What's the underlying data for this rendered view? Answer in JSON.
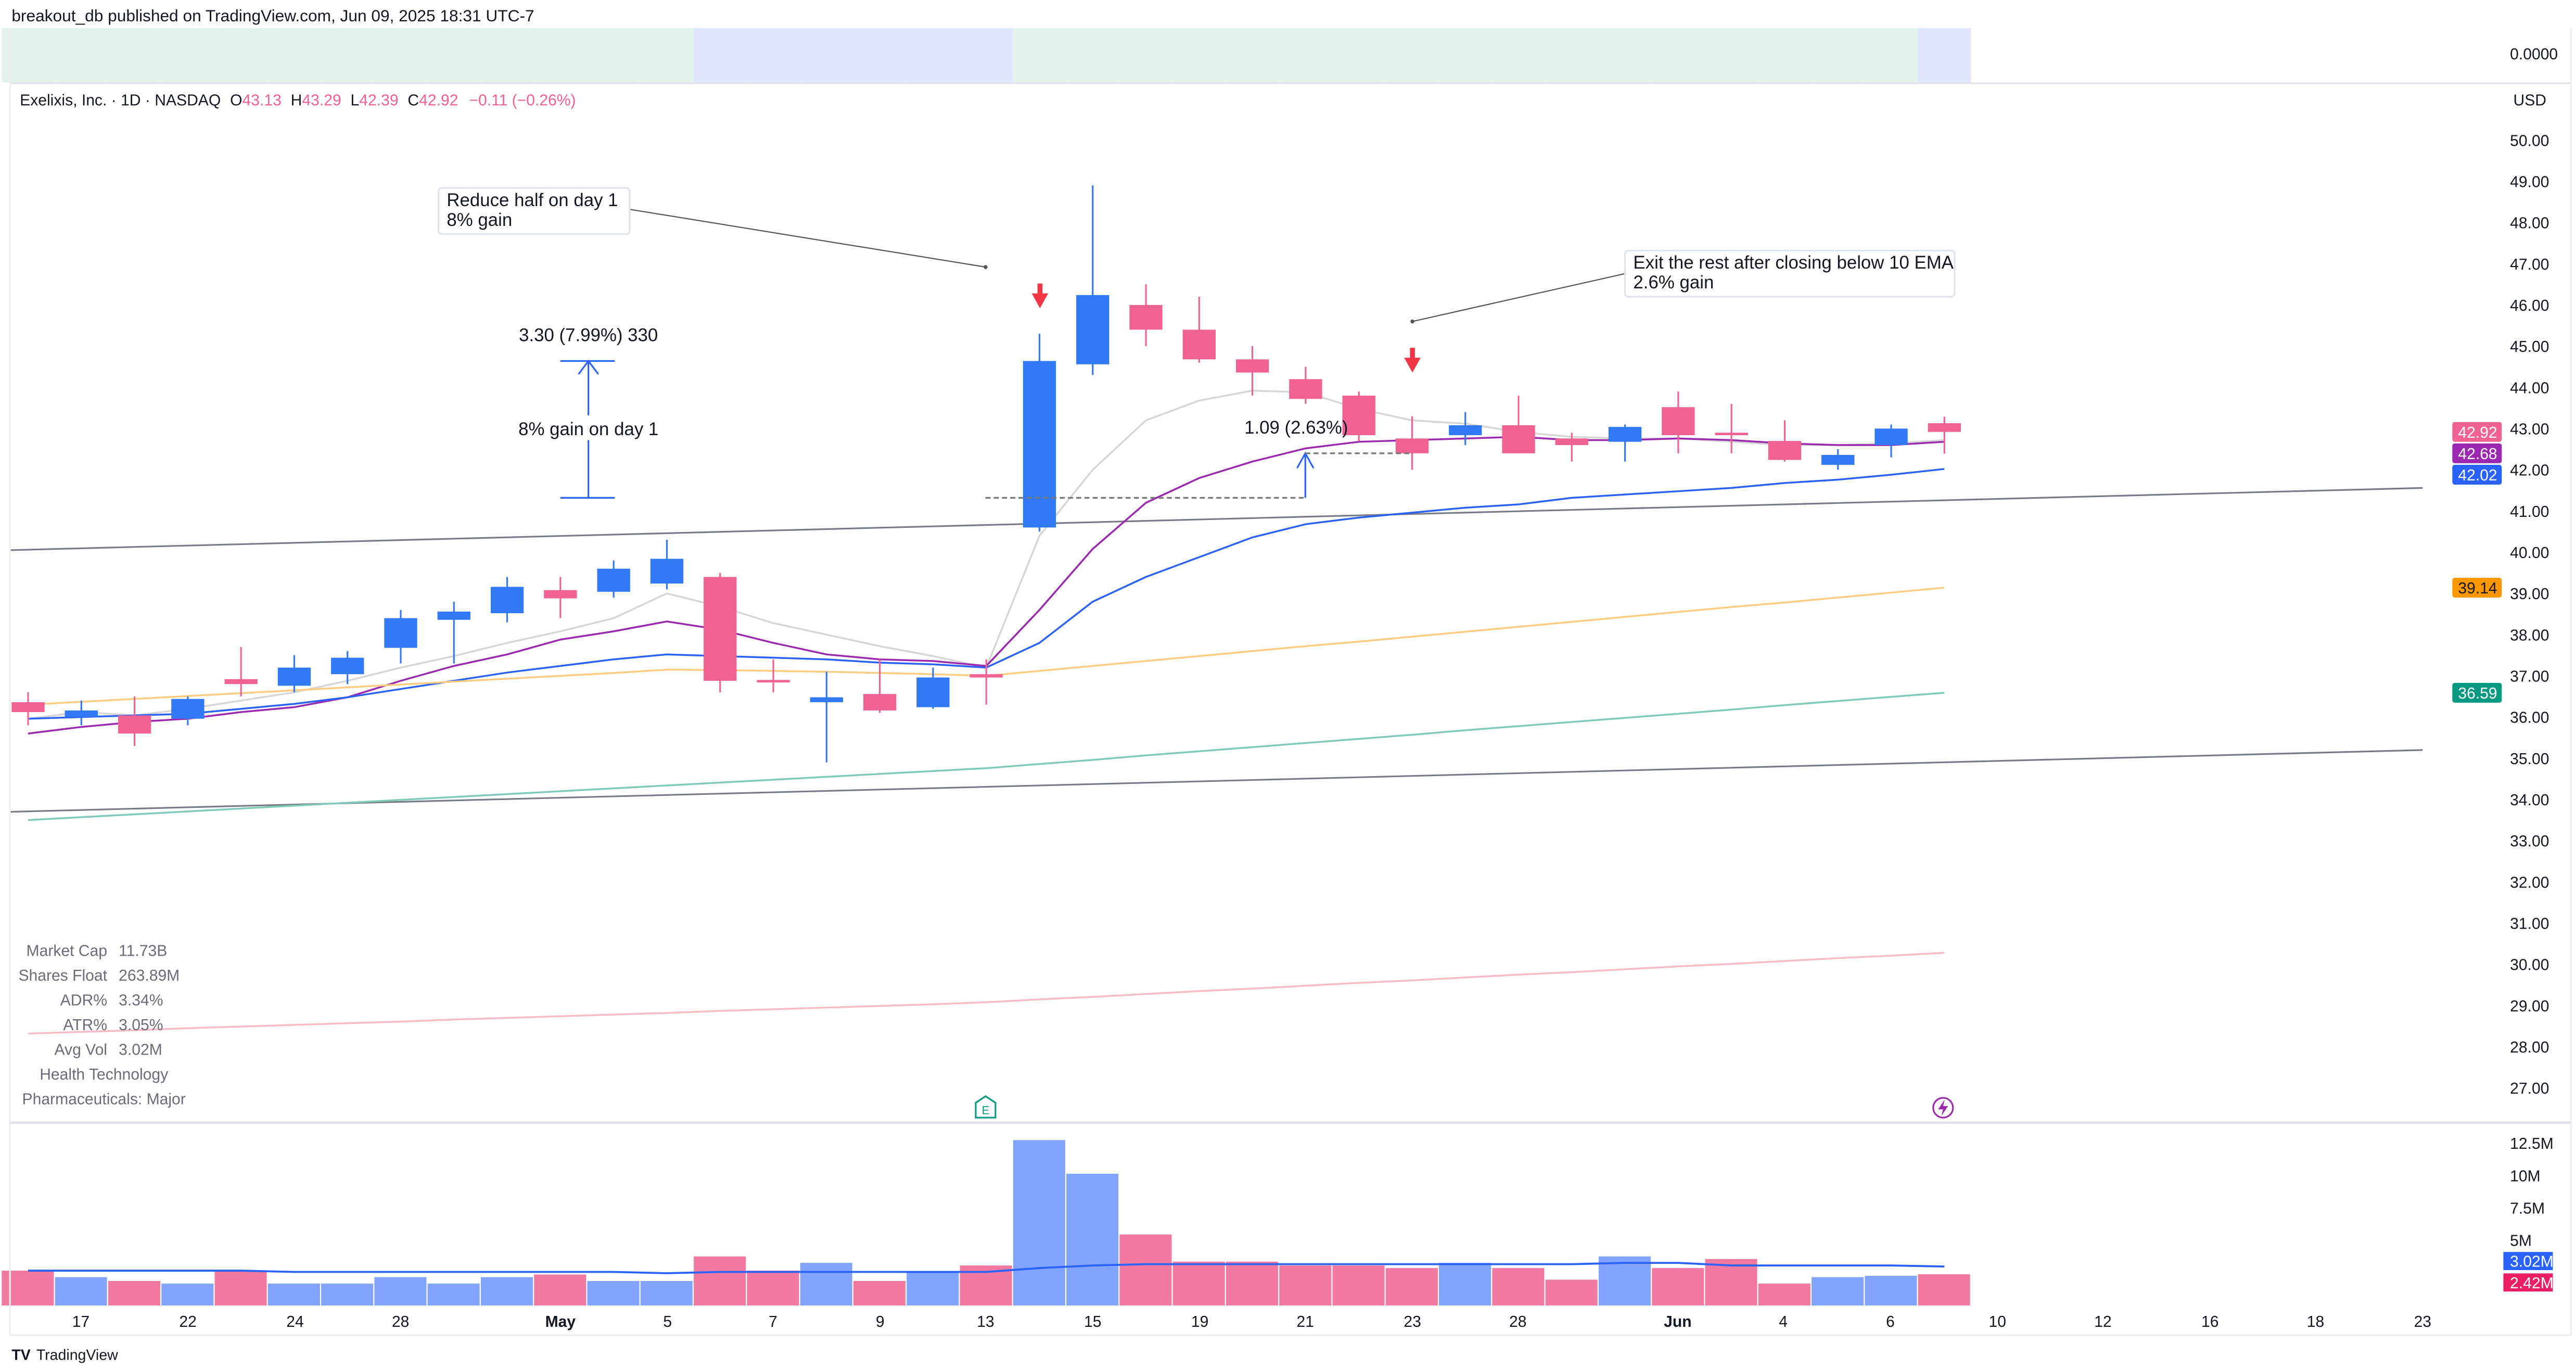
{
  "header": {
    "publisher": "breakout_db published on TradingView.com, Jun 09, 2025 18:31 UTC-7"
  },
  "legend": {
    "symbol": "Exelixis, Inc. · 1D · NASDAQ",
    "o_label": "O",
    "o": "43.13",
    "h_label": "H",
    "h": "43.29",
    "l_label": "L",
    "l": "42.39",
    "c_label": "C",
    "c": "42.92",
    "change": "−0.11 (−0.26%)"
  },
  "top_indicator": {
    "value_label": "0.0000",
    "regime_per_bar": [
      "green",
      "green",
      "green",
      "green",
      "green",
      "green",
      "green",
      "green",
      "green",
      "green",
      "green",
      "green",
      "green",
      "blue",
      "blue",
      "blue",
      "blue",
      "blue",
      "blue",
      "green",
      "green",
      "green",
      "green",
      "green",
      "green",
      "green",
      "green",
      "green",
      "green",
      "green",
      "green",
      "green",
      "green",
      "green",
      "green",
      "green",
      "blue"
    ],
    "colors": {
      "green": "#e4f3ec",
      "blue": "#e0e6fb"
    }
  },
  "currency": "USD",
  "colors": {
    "up": "#3179f5",
    "down": "#f06292",
    "vol_up": "#82a4ff",
    "vol_down": "#f279a0",
    "ema_gray": "#d6d6d6",
    "ema_purple": "#9c27b0",
    "ma_blue": "#2962ff",
    "ma_orange": "#ffcc80",
    "ma_teal": "#7fcbb8",
    "ma_pink": "#f8bbc7",
    "arrow_red": "#f23645",
    "earnings": "#089981",
    "dividend": "#9c27b0"
  },
  "stats": [
    {
      "label": "Market Cap",
      "value": "11.73B"
    },
    {
      "label": "Shares Float",
      "value": "263.89M"
    },
    {
      "label": "ADR%",
      "value": "3.34%"
    },
    {
      "label": "ATR%",
      "value": "3.05%"
    },
    {
      "label": "Avg Vol",
      "value": "3.02M"
    }
  ],
  "sector": "Health Technology",
  "industry": "Pharmaceuticals: Major",
  "annotations": {
    "note1_line1": "Reduce half on day 1",
    "note1_line2": "8% gain",
    "measure1": "3.30 (7.99%) 330",
    "measure1_caption": "8% gain on day 1",
    "measure2": "1.09 (2.63%)",
    "note2_line1": "Exit the rest after closing below 10 EMA",
    "note2_line2": "2.6% gain",
    "earnings_marker": "E",
    "entry_price": 41.3,
    "exit_price": 42.4
  },
  "chart_data": {
    "type": "candlestick",
    "dates": [
      "Apr 16",
      "Apr 17",
      "Apr 21",
      "Apr 22",
      "Apr 23",
      "Apr 24",
      "Apr 25",
      "Apr 28",
      "Apr 29",
      "Apr 30",
      "May 1",
      "May 2",
      "May 5",
      "May 6",
      "May 7",
      "May 8",
      "May 9",
      "May 12",
      "May 13",
      "May 14",
      "May 15",
      "May 16",
      "May 19",
      "May 20",
      "May 21",
      "May 22",
      "May 23",
      "May 27",
      "May 28",
      "May 29",
      "May 30",
      "Jun 2",
      "Jun 3",
      "Jun 4",
      "Jun 5",
      "Jun 6",
      "Jun 9"
    ],
    "open": [
      36.36,
      36.0,
      36.04,
      35.96,
      36.92,
      36.76,
      37.04,
      37.68,
      38.36,
      38.52,
      39.08,
      39.04,
      39.24,
      39.4,
      36.9,
      36.36,
      36.56,
      36.24,
      37.04,
      40.6,
      44.56,
      46.0,
      45.4,
      44.68,
      44.2,
      43.8,
      42.76,
      42.84,
      43.08,
      42.76,
      42.68,
      43.52,
      42.9,
      42.7,
      42.12,
      42.6,
      43.13
    ],
    "high": [
      36.6,
      36.4,
      36.5,
      36.5,
      37.7,
      37.5,
      37.6,
      38.6,
      38.8,
      39.4,
      39.4,
      39.8,
      40.3,
      39.5,
      37.4,
      37.1,
      37.4,
      37.2,
      37.4,
      45.3,
      48.9,
      46.5,
      46.2,
      45.0,
      44.5,
      43.9,
      43.3,
      43.4,
      43.8,
      42.9,
      43.1,
      43.9,
      43.6,
      43.2,
      42.5,
      43.1,
      43.29
    ],
    "low": [
      35.8,
      35.8,
      35.3,
      35.8,
      36.5,
      36.6,
      36.8,
      37.3,
      37.3,
      38.3,
      38.4,
      38.9,
      39.1,
      36.6,
      36.6,
      34.9,
      36.1,
      36.2,
      36.3,
      40.5,
      44.3,
      45.0,
      44.6,
      43.8,
      43.6,
      42.7,
      42.0,
      42.6,
      42.4,
      42.2,
      42.2,
      42.4,
      42.4,
      42.2,
      42.0,
      42.3,
      42.39
    ],
    "close": [
      36.12,
      36.16,
      35.6,
      36.44,
      36.8,
      37.2,
      37.44,
      38.4,
      38.56,
      39.16,
      38.88,
      39.6,
      39.84,
      36.88,
      36.84,
      36.48,
      36.16,
      36.96,
      36.96,
      44.64,
      46.24,
      45.4,
      44.68,
      44.36,
      43.72,
      42.84,
      42.4,
      43.08,
      42.4,
      42.6,
      43.04,
      42.84,
      42.86,
      42.24,
      42.36,
      43.0,
      42.92
    ],
    "volume_m": [
      2.7,
      2.2,
      1.9,
      1.7,
      2.7,
      1.7,
      1.7,
      2.2,
      1.7,
      2.2,
      2.4,
      1.9,
      1.9,
      3.8,
      2.7,
      3.3,
      1.9,
      2.6,
      3.1,
      12.8,
      10.2,
      5.5,
      3.4,
      3.4,
      3.1,
      3.1,
      2.9,
      3.3,
      2.9,
      2.0,
      3.8,
      2.9,
      3.6,
      1.7,
      2.2,
      2.3,
      2.42
    ],
    "volume_ma_m": [
      2.7,
      2.7,
      2.7,
      2.7,
      2.7,
      2.6,
      2.6,
      2.6,
      2.6,
      2.6,
      2.6,
      2.6,
      2.5,
      2.6,
      2.6,
      2.6,
      2.6,
      2.6,
      2.6,
      2.9,
      3.1,
      3.2,
      3.2,
      3.2,
      3.2,
      3.2,
      3.2,
      3.2,
      3.2,
      3.2,
      3.3,
      3.3,
      3.1,
      3.1,
      3.1,
      3.1,
      3.02
    ],
    "overlays": [
      {
        "color_key": "ema_gray",
        "values": [
          35.96,
          36.12,
          36.04,
          36.2,
          36.4,
          36.6,
          36.88,
          37.2,
          37.48,
          37.8,
          38.08,
          38.4,
          39.0,
          38.68,
          38.28,
          38.0,
          37.72,
          37.48,
          37.2,
          40.4,
          42.0,
          43.2,
          43.68,
          43.92,
          43.88,
          43.48,
          43.2,
          43.12,
          42.92,
          42.8,
          42.76,
          42.76,
          42.68,
          42.6,
          42.6,
          42.64,
          42.72
        ]
      },
      {
        "color_key": "ema_purple",
        "last_label": "42.68",
        "values": [
          35.6,
          35.76,
          35.88,
          35.96,
          36.12,
          36.24,
          36.48,
          36.88,
          37.24,
          37.52,
          37.88,
          38.08,
          38.32,
          38.12,
          37.8,
          37.52,
          37.4,
          37.36,
          37.24,
          38.6,
          40.08,
          41.2,
          41.8,
          42.2,
          42.52,
          42.68,
          42.72,
          42.76,
          42.8,
          42.72,
          42.72,
          42.76,
          42.72,
          42.64,
          42.6,
          42.6,
          42.68
        ]
      },
      {
        "color_key": "ma_blue",
        "last_label": "42.02",
        "values": [
          35.96,
          36.0,
          36.04,
          36.08,
          36.2,
          36.32,
          36.48,
          36.68,
          36.88,
          37.08,
          37.24,
          37.4,
          37.52,
          37.48,
          37.44,
          37.4,
          37.32,
          37.28,
          37.2,
          37.8,
          38.8,
          39.4,
          39.88,
          40.36,
          40.68,
          40.84,
          40.96,
          41.08,
          41.16,
          41.32,
          41.4,
          41.48,
          41.56,
          41.68,
          41.76,
          41.88,
          42.02
        ]
      },
      {
        "color_key": "ma_orange",
        "last_label": "39.14",
        "values": [
          36.3,
          36.37,
          36.44,
          36.51,
          36.58,
          36.65,
          36.72,
          36.79,
          36.86,
          36.93,
          37.0,
          37.07,
          37.15,
          37.14,
          37.12,
          37.1,
          37.07,
          37.04,
          37.0,
          37.12,
          37.24,
          37.36,
          37.48,
          37.6,
          37.72,
          37.83,
          37.95,
          38.07,
          38.19,
          38.31,
          38.43,
          38.55,
          38.67,
          38.78,
          38.9,
          39.02,
          39.14
        ]
      },
      {
        "color_key": "ma_teal",
        "last_label": "36.59",
        "values": [
          33.5,
          33.57,
          33.64,
          33.71,
          33.78,
          33.85,
          33.92,
          33.99,
          34.06,
          34.13,
          34.2,
          34.27,
          34.34,
          34.41,
          34.48,
          34.55,
          34.62,
          34.69,
          34.76,
          34.86,
          34.96,
          35.07,
          35.17,
          35.27,
          35.37,
          35.47,
          35.57,
          35.68,
          35.78,
          35.88,
          35.98,
          36.08,
          36.18,
          36.29,
          36.39,
          36.49,
          36.59
        ]
      },
      {
        "color_key": "ma_pink",
        "values": [
          28.32,
          28.36,
          28.4,
          28.45,
          28.49,
          28.53,
          28.57,
          28.61,
          28.66,
          28.7,
          28.74,
          28.78,
          28.82,
          28.87,
          28.91,
          28.95,
          28.99,
          29.03,
          29.08,
          29.15,
          29.21,
          29.28,
          29.35,
          29.41,
          29.48,
          29.55,
          29.61,
          29.68,
          29.75,
          29.81,
          29.88,
          29.95,
          30.01,
          30.08,
          30.15,
          30.21,
          30.28
        ]
      }
    ],
    "trendlines": [
      {
        "from_date": "Apr 16",
        "from_price": 40.05,
        "to_date": "Jun 23",
        "to_price": 41.56
      },
      {
        "from_date": "Apr 16",
        "from_price": 33.7,
        "to_date": "Jun 23",
        "to_price": 35.2
      }
    ],
    "price_axis": {
      "range": [
        26.5,
        50.5
      ],
      "ticks": [
        "50.00",
        "49.00",
        "48.00",
        "47.00",
        "46.00",
        "45.00",
        "44.00",
        "43.00",
        "42.00",
        "41.00",
        "40.00",
        "39.00",
        "38.00",
        "37.00",
        "36.00",
        "35.00",
        "34.00",
        "33.00",
        "32.00",
        "31.00",
        "30.00",
        "29.00",
        "28.00",
        "27.00"
      ]
    },
    "last_price_label": "42.92",
    "volume_axis": {
      "ticks": [
        "12.5M",
        "10M",
        "7.5M",
        "5M"
      ],
      "last_labels": [
        "3.02M",
        "2.42M"
      ]
    },
    "x_ticks": [
      "17",
      "22",
      "24",
      "28",
      "May",
      "5",
      "7",
      "9",
      "13",
      "15",
      "19",
      "21",
      "23",
      "28",
      "Jun",
      "4",
      "6",
      "10",
      "12",
      "16",
      "18",
      "23"
    ]
  },
  "footer": {
    "logo": "TradingView"
  }
}
